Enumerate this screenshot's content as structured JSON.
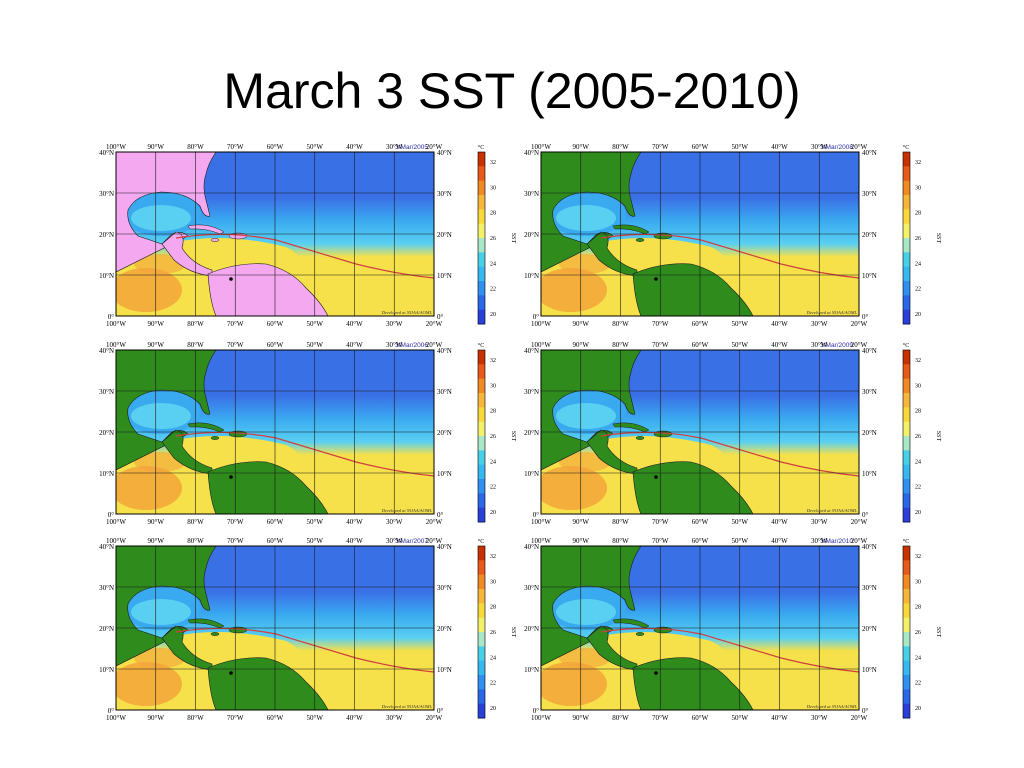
{
  "slide": {
    "title": "March 3 SST (2005-2010)"
  },
  "map_labels": {
    "lon": [
      "100°W",
      "90°W",
      "80°W",
      "70°W",
      "60°W",
      "50°W",
      "40°W",
      "30°W",
      "20°W"
    ],
    "lat_left": [
      "40°N",
      "30°N",
      "20°N",
      "10°N",
      "0°"
    ],
    "lat_right": [
      "40°N",
      "30°N",
      "20°N",
      "10°N",
      "0°"
    ],
    "credit": "Developed at NOAA/AOML"
  },
  "colorbar": {
    "unit": "°C",
    "ticks": [
      "32",
      "30",
      "28",
      "26",
      "24",
      "22",
      "20"
    ],
    "label": "SST",
    "colors": [
      "#c83200",
      "#e85a1a",
      "#f08a24",
      "#f6b63a",
      "#f8d83a",
      "#f3f06a",
      "#a8e8c8",
      "#48d0e8",
      "#38b8f0",
      "#3090f0",
      "#2a68e8",
      "#2a40d8"
    ]
  },
  "palette": {
    "land": "#2e8b1c",
    "land_2005": "#f3a8f0",
    "deep_blue": "#3a70e6",
    "mid_blue": "#3aaaf0",
    "cyan": "#59d0f2",
    "warm_yellow": "#f6e14a",
    "orange": "#f3a43a",
    "contour": "#d04040"
  },
  "panels": [
    {
      "id": "panel-2005",
      "date": "3/Mar/2005",
      "land_variant": "pink"
    },
    {
      "id": "panel-2008",
      "date": "3/Mar/2008",
      "land_variant": "green"
    },
    {
      "id": "panel-2006",
      "date": "3/Mar/2006",
      "land_variant": "green"
    },
    {
      "id": "panel-2009",
      "date": "3/Mar/2009",
      "land_variant": "green"
    },
    {
      "id": "panel-2007",
      "date": "3/Mar/2007",
      "land_variant": "green"
    },
    {
      "id": "panel-2010",
      "date": "3/Mar/2010",
      "land_variant": "green"
    }
  ]
}
